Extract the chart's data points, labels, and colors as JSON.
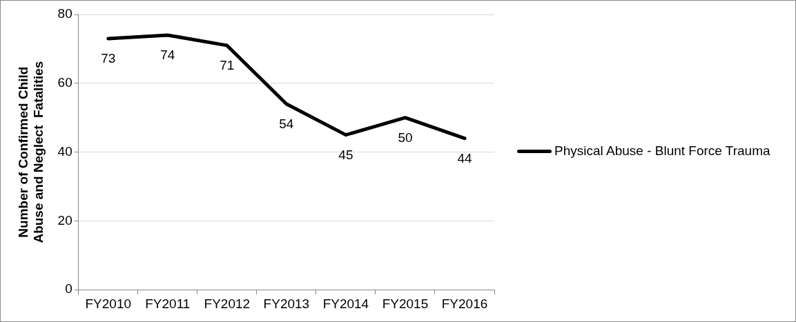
{
  "chart_data": {
    "type": "line",
    "ylabel": "Number of Confirmed Child Abuse and Neglect  Fatalities",
    "categories": [
      "FY2010",
      "FY2011",
      "FY2012",
      "FY2013",
      "FY2014",
      "FY2015",
      "FY2016"
    ],
    "series": [
      {
        "name": "Physical Abuse - Blunt Force Trauma",
        "color": "#000000",
        "values": [
          73,
          74,
          71,
          54,
          45,
          50,
          44
        ]
      }
    ],
    "ylim": [
      0,
      80
    ],
    "yticks": [
      0,
      20,
      40,
      60,
      80
    ],
    "grid": "y",
    "legend": "right",
    "data_labels": true,
    "marker": "none",
    "line_style": "solid"
  }
}
